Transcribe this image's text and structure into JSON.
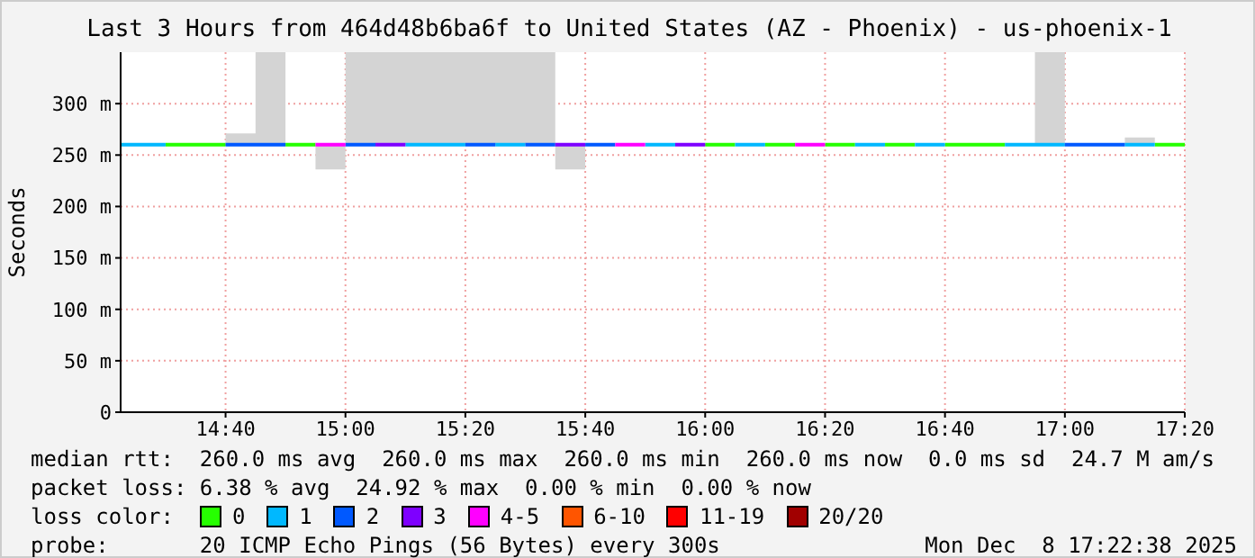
{
  "chart_data": {
    "type": "line",
    "title": "Last 3 Hours from 464d48b6ba6f to United States (AZ - Phoenix) - us-phoenix-1",
    "ylabel": "Seconds",
    "x": [
      14.375,
      14.5,
      14.5,
      14.5833,
      14.5833,
      14.6667,
      14.6667,
      14.75,
      14.75,
      14.8333,
      14.8333,
      14.9167,
      14.9167,
      15,
      15,
      15.0833,
      15.0833,
      15.1667,
      15.1667,
      15.25,
      15.25,
      15.3333,
      15.3333,
      15.4167,
      15.4167,
      15.5,
      15.5,
      15.5833,
      15.5833,
      15.6667,
      15.6667,
      15.75,
      15.75,
      15.8333,
      15.8333,
      15.9167,
      15.9167,
      16,
      16,
      16.0833,
      16.0833,
      16.1667,
      16.1667,
      16.25,
      16.25,
      16.3333,
      16.3333,
      16.4167,
      16.4167,
      16.5,
      16.5,
      16.5833,
      16.5833,
      16.6667,
      16.6667,
      16.75,
      16.75,
      16.8333,
      16.8333,
      16.9167,
      16.9167,
      17,
      17,
      17.0833,
      17.0833,
      17.1667,
      17.1667,
      17.25,
      17.25,
      17.3333
    ],
    "xlim": [
      14.375,
      17.3333
    ],
    "xticks": [
      {
        "value": 14.6667,
        "label": "14:40"
      },
      {
        "value": 15,
        "label": "15:00"
      },
      {
        "value": 15.3333,
        "label": "15:20"
      },
      {
        "value": 15.6667,
        "label": "15:40"
      },
      {
        "value": 16,
        "label": "16:00"
      },
      {
        "value": 16.3333,
        "label": "16:20"
      },
      {
        "value": 16.6667,
        "label": "16:40"
      },
      {
        "value": 17,
        "label": "17:00"
      },
      {
        "value": 17.3333,
        "label": "17:20"
      }
    ],
    "ylim": [
      0,
      350
    ],
    "yticks": [
      0,
      {
        "value": 50,
        "label": "50 m"
      },
      {
        "value": 100,
        "label": "100 m"
      },
      {
        "value": 150,
        "label": "150 m"
      },
      {
        "value": 200,
        "label": "200 m"
      },
      {
        "value": 250,
        "label": "250 m"
      },
      {
        "value": 300,
        "label": "300 m"
      }
    ],
    "grid": true,
    "legend": "bottom",
    "legend_title": "loss color:",
    "marker": "none",
    "series": [
      {
        "color": "#d4d4d4",
        "values": [
          null,
          null,
          null,
          null,
          null,
          null,
          null,
          null,
          null,
          null,
          null,
          null,
          null,
          null,
          null,
          null,
          null,
          null,
          null,
          null,
          null,
          null,
          null,
          null,
          null,
          null,
          null,
          null,
          null,
          null,
          null,
          null,
          null,
          null,
          null,
          null,
          null,
          null,
          null,
          null,
          null,
          null,
          null,
          null,
          null,
          null,
          null,
          null,
          null,
          null,
          null,
          null,
          null,
          null,
          null,
          null,
          null,
          null,
          null,
          null,
          null,
          null,
          null,
          null,
          null,
          null,
          null,
          null,
          null,
          null
        ],
        "lower": [
          260,
          260,
          260,
          260,
          260,
          260,
          260,
          260,
          260,
          260,
          260,
          260,
          236,
          236,
          260,
          260,
          260,
          260,
          260,
          260,
          260,
          260,
          260,
          260,
          260,
          260,
          260,
          260,
          236,
          236,
          260,
          260,
          260,
          260,
          260,
          260,
          260,
          260,
          260,
          260,
          260,
          260,
          260,
          260,
          260,
          260,
          260,
          260,
          260,
          260,
          260,
          260,
          260,
          260,
          260,
          260,
          260,
          260,
          260,
          260,
          260,
          260,
          260,
          260,
          260,
          260,
          260,
          260,
          260,
          260
        ],
        "upper": [
          260,
          260,
          260,
          260,
          260,
          260,
          271,
          271,
          350,
          350,
          260,
          260,
          260,
          260,
          350,
          350,
          350,
          350,
          350,
          350,
          350,
          350,
          350,
          350,
          350,
          350,
          350,
          350,
          260,
          260,
          260,
          260,
          260,
          260,
          260,
          260,
          260,
          260,
          260,
          260,
          260,
          260,
          260,
          260,
          260,
          260,
          260,
          260,
          260,
          260,
          260,
          260,
          260,
          260,
          260,
          260,
          260,
          260,
          260,
          260,
          350,
          350,
          260,
          260,
          260,
          260,
          267,
          267,
          260,
          260
        ]
      },
      {
        "name": "0",
        "color": "#26ff00",
        "values": [
          null,
          null,
          260,
          260,
          260,
          260,
          null,
          null,
          null,
          null,
          260,
          260,
          null,
          null,
          null,
          null,
          null,
          null,
          null,
          null,
          null,
          null,
          null,
          null,
          null,
          null,
          null,
          null,
          null,
          null,
          null,
          null,
          null,
          null,
          null,
          null,
          null,
          null,
          260,
          260,
          null,
          null,
          260,
          260,
          null,
          null,
          260,
          260,
          null,
          null,
          260,
          260,
          null,
          null,
          260,
          260,
          260,
          260,
          null,
          null,
          null,
          null,
          null,
          null,
          null,
          null,
          null,
          null,
          260,
          260
        ]
      },
      {
        "name": "1",
        "color": "#00b8ff",
        "values": [
          260,
          260,
          null,
          null,
          null,
          null,
          null,
          null,
          null,
          null,
          null,
          null,
          null,
          null,
          null,
          null,
          null,
          null,
          260,
          260,
          260,
          260,
          null,
          null,
          260,
          260,
          null,
          null,
          null,
          null,
          null,
          null,
          null,
          null,
          260,
          260,
          null,
          null,
          null,
          null,
          260,
          260,
          null,
          null,
          null,
          null,
          null,
          null,
          260,
          260,
          null,
          null,
          260,
          260,
          null,
          null,
          null,
          null,
          260,
          260,
          260,
          260,
          null,
          null,
          null,
          null,
          260,
          260,
          null,
          null
        ]
      },
      {
        "name": "2",
        "color": "#0059ff",
        "values": [
          null,
          null,
          null,
          null,
          null,
          null,
          260,
          260,
          260,
          260,
          null,
          null,
          null,
          null,
          260,
          260,
          null,
          null,
          null,
          null,
          null,
          null,
          260,
          260,
          null,
          null,
          260,
          260,
          null,
          null,
          260,
          260,
          null,
          null,
          null,
          null,
          null,
          null,
          null,
          null,
          null,
          null,
          null,
          null,
          null,
          null,
          null,
          null,
          null,
          null,
          null,
          null,
          null,
          null,
          null,
          null,
          null,
          null,
          null,
          null,
          null,
          null,
          260,
          260,
          260,
          260,
          null,
          null,
          null,
          null
        ]
      },
      {
        "name": "3",
        "color": "#7e00ff",
        "values": [
          null,
          null,
          null,
          null,
          null,
          null,
          null,
          null,
          null,
          null,
          null,
          null,
          null,
          null,
          null,
          null,
          260,
          260,
          null,
          null,
          null,
          null,
          null,
          null,
          null,
          null,
          null,
          null,
          260,
          260,
          null,
          null,
          null,
          null,
          null,
          null,
          260,
          260,
          null,
          null,
          null,
          null,
          null,
          null,
          null,
          null,
          null,
          null,
          null,
          null,
          null,
          null,
          null,
          null,
          null,
          null,
          null,
          null,
          null,
          null,
          null,
          null,
          null,
          null,
          null,
          null,
          null,
          null,
          null,
          null
        ]
      },
      {
        "name": "4-5",
        "color": "#ff00ff",
        "values": [
          null,
          null,
          null,
          null,
          null,
          null,
          null,
          null,
          null,
          null,
          null,
          null,
          260,
          260,
          null,
          null,
          null,
          null,
          null,
          null,
          null,
          null,
          null,
          null,
          null,
          null,
          null,
          null,
          null,
          null,
          null,
          null,
          260,
          260,
          null,
          null,
          null,
          null,
          null,
          null,
          null,
          null,
          null,
          null,
          260,
          260,
          null,
          null,
          null,
          null,
          null,
          null,
          null,
          null,
          null,
          null,
          null,
          null,
          null,
          null,
          null,
          null,
          null,
          null,
          null,
          null,
          null,
          null,
          null,
          null
        ]
      },
      {
        "name": "6-10",
        "color": "#ff5500",
        "values": [
          null,
          null,
          null,
          null,
          null,
          null,
          null,
          null,
          null,
          null,
          null,
          null,
          null,
          null,
          null,
          null,
          null,
          null,
          null,
          null,
          null,
          null,
          null,
          null,
          null,
          null,
          null,
          null,
          null,
          null,
          null,
          null,
          null,
          null,
          null,
          null,
          null,
          null,
          null,
          null,
          null,
          null,
          null,
          null,
          null,
          null,
          null,
          null,
          null,
          null,
          null,
          null,
          null,
          null,
          null,
          null,
          null,
          null,
          null,
          null,
          null,
          null,
          null,
          null,
          null,
          null,
          null,
          null,
          null,
          null
        ]
      },
      {
        "name": "11-19",
        "color": "#ff0000",
        "values": [
          null,
          null,
          null,
          null,
          null,
          null,
          null,
          null,
          null,
          null,
          null,
          null,
          null,
          null,
          null,
          null,
          null,
          null,
          null,
          null,
          null,
          null,
          null,
          null,
          null,
          null,
          null,
          null,
          null,
          null,
          null,
          null,
          null,
          null,
          null,
          null,
          null,
          null,
          null,
          null,
          null,
          null,
          null,
          null,
          null,
          null,
          null,
          null,
          null,
          null,
          null,
          null,
          null,
          null,
          null,
          null,
          null,
          null,
          null,
          null,
          null,
          null,
          null,
          null,
          null,
          null,
          null,
          null,
          null,
          null
        ]
      },
      {
        "name": "20/20",
        "color": "#a10000",
        "values": [
          null,
          null,
          null,
          null,
          null,
          null,
          null,
          null,
          null,
          null,
          null,
          null,
          null,
          null,
          null,
          null,
          null,
          null,
          null,
          null,
          null,
          null,
          null,
          null,
          null,
          null,
          null,
          null,
          null,
          null,
          null,
          null,
          null,
          null,
          null,
          null,
          null,
          null,
          null,
          null,
          null,
          null,
          null,
          null,
          null,
          null,
          null,
          null,
          null,
          null,
          null,
          null,
          null,
          null,
          null,
          null,
          null,
          null,
          null,
          null,
          null,
          null,
          null,
          null,
          null,
          null,
          null,
          null,
          null,
          null
        ]
      }
    ],
    "annotations": [
      "median rtt:  260.0 ms avg  260.0 ms max  260.0 ms min  260.0 ms now  0.0 ms sd  24.7 M am/s",
      "packet loss: 6.38 % avg  24.92 % max  0.00 % min  0.00 % now",
      "probe:       20 ICMP Echo Pings (56 Bytes) every 300s",
      "Mon Dec  8 17:22:38 2025"
    ]
  }
}
